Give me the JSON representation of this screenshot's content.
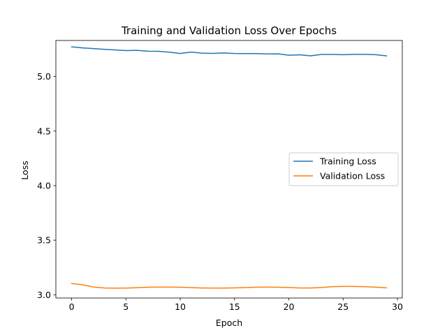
{
  "chart_data": {
    "type": "line",
    "title": "Training and Validation Loss Over Epochs",
    "xlabel": "Epoch",
    "ylabel": "Loss",
    "xlim": [
      -1.45,
      30.45
    ],
    "ylim": [
      2.97,
      5.33
    ],
    "xticks": [
      0,
      5,
      10,
      15,
      20,
      25,
      30
    ],
    "yticks": [
      3.0,
      3.5,
      4.0,
      4.5,
      5.0
    ],
    "grid": false,
    "legend_position": "center-right",
    "x": [
      0,
      1,
      2,
      3,
      4,
      5,
      6,
      7,
      8,
      9,
      10,
      11,
      12,
      13,
      14,
      15,
      16,
      17,
      18,
      19,
      20,
      21,
      22,
      23,
      24,
      25,
      26,
      27,
      28,
      29
    ],
    "series": [
      {
        "name": "Training Loss",
        "color": "#1f77b4",
        "values": [
          5.272,
          5.262,
          5.256,
          5.249,
          5.244,
          5.237,
          5.24,
          5.232,
          5.231,
          5.223,
          5.211,
          5.224,
          5.214,
          5.212,
          5.216,
          5.211,
          5.21,
          5.21,
          5.207,
          5.208,
          5.195,
          5.199,
          5.189,
          5.202,
          5.202,
          5.2,
          5.203,
          5.203,
          5.2,
          5.189
        ]
      },
      {
        "name": "Validation Loss",
        "color": "#ff7f0e",
        "values": [
          3.103,
          3.091,
          3.071,
          3.062,
          3.06,
          3.061,
          3.064,
          3.069,
          3.07,
          3.07,
          3.069,
          3.065,
          3.062,
          3.061,
          3.061,
          3.063,
          3.065,
          3.069,
          3.07,
          3.069,
          3.066,
          3.062,
          3.062,
          3.066,
          3.074,
          3.076,
          3.076,
          3.074,
          3.069,
          3.063
        ]
      }
    ]
  }
}
